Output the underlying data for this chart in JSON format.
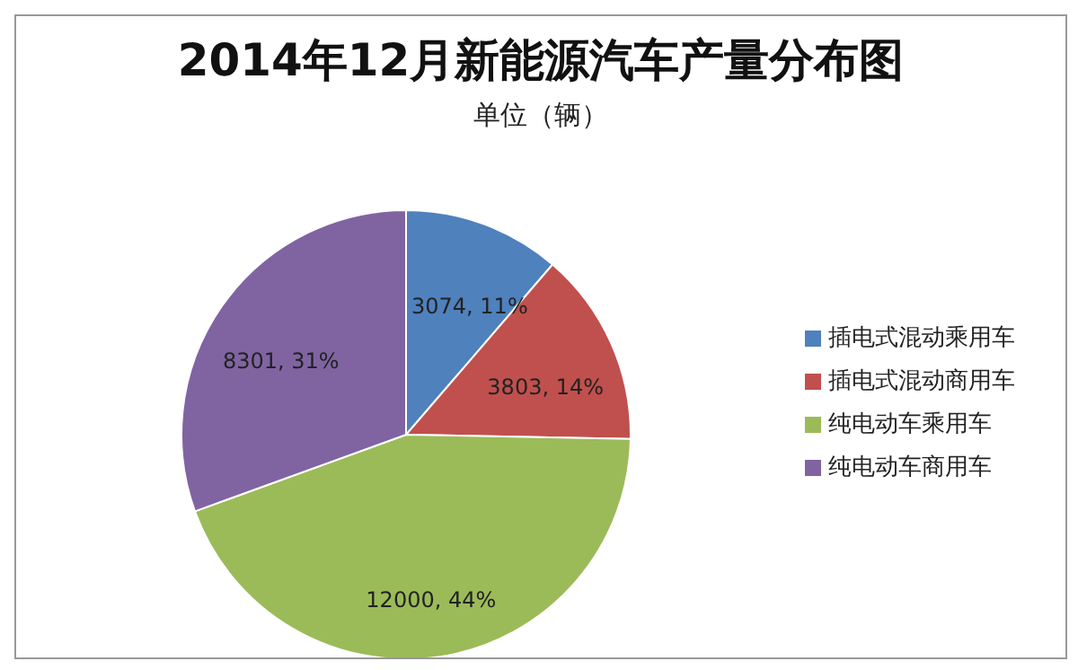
{
  "chart_data": {
    "type": "pie",
    "title": "2014年12月新能源汽车产量分布图",
    "subtitle": "单位（辆）",
    "categories": [
      "插电式混动乘用车",
      "插电式混动商用车",
      "纯电动车乘用车",
      "纯电动车商用车"
    ],
    "values": [
      3074,
      3803,
      12000,
      8301
    ],
    "colors": [
      "#4f81bd",
      "#c0504d",
      "#9bbb59",
      "#8064a2"
    ],
    "value_labels": [
      "3074, 11%",
      "3803, 14%",
      "12000, 44%",
      "8301, 31%"
    ],
    "legend": "right"
  }
}
